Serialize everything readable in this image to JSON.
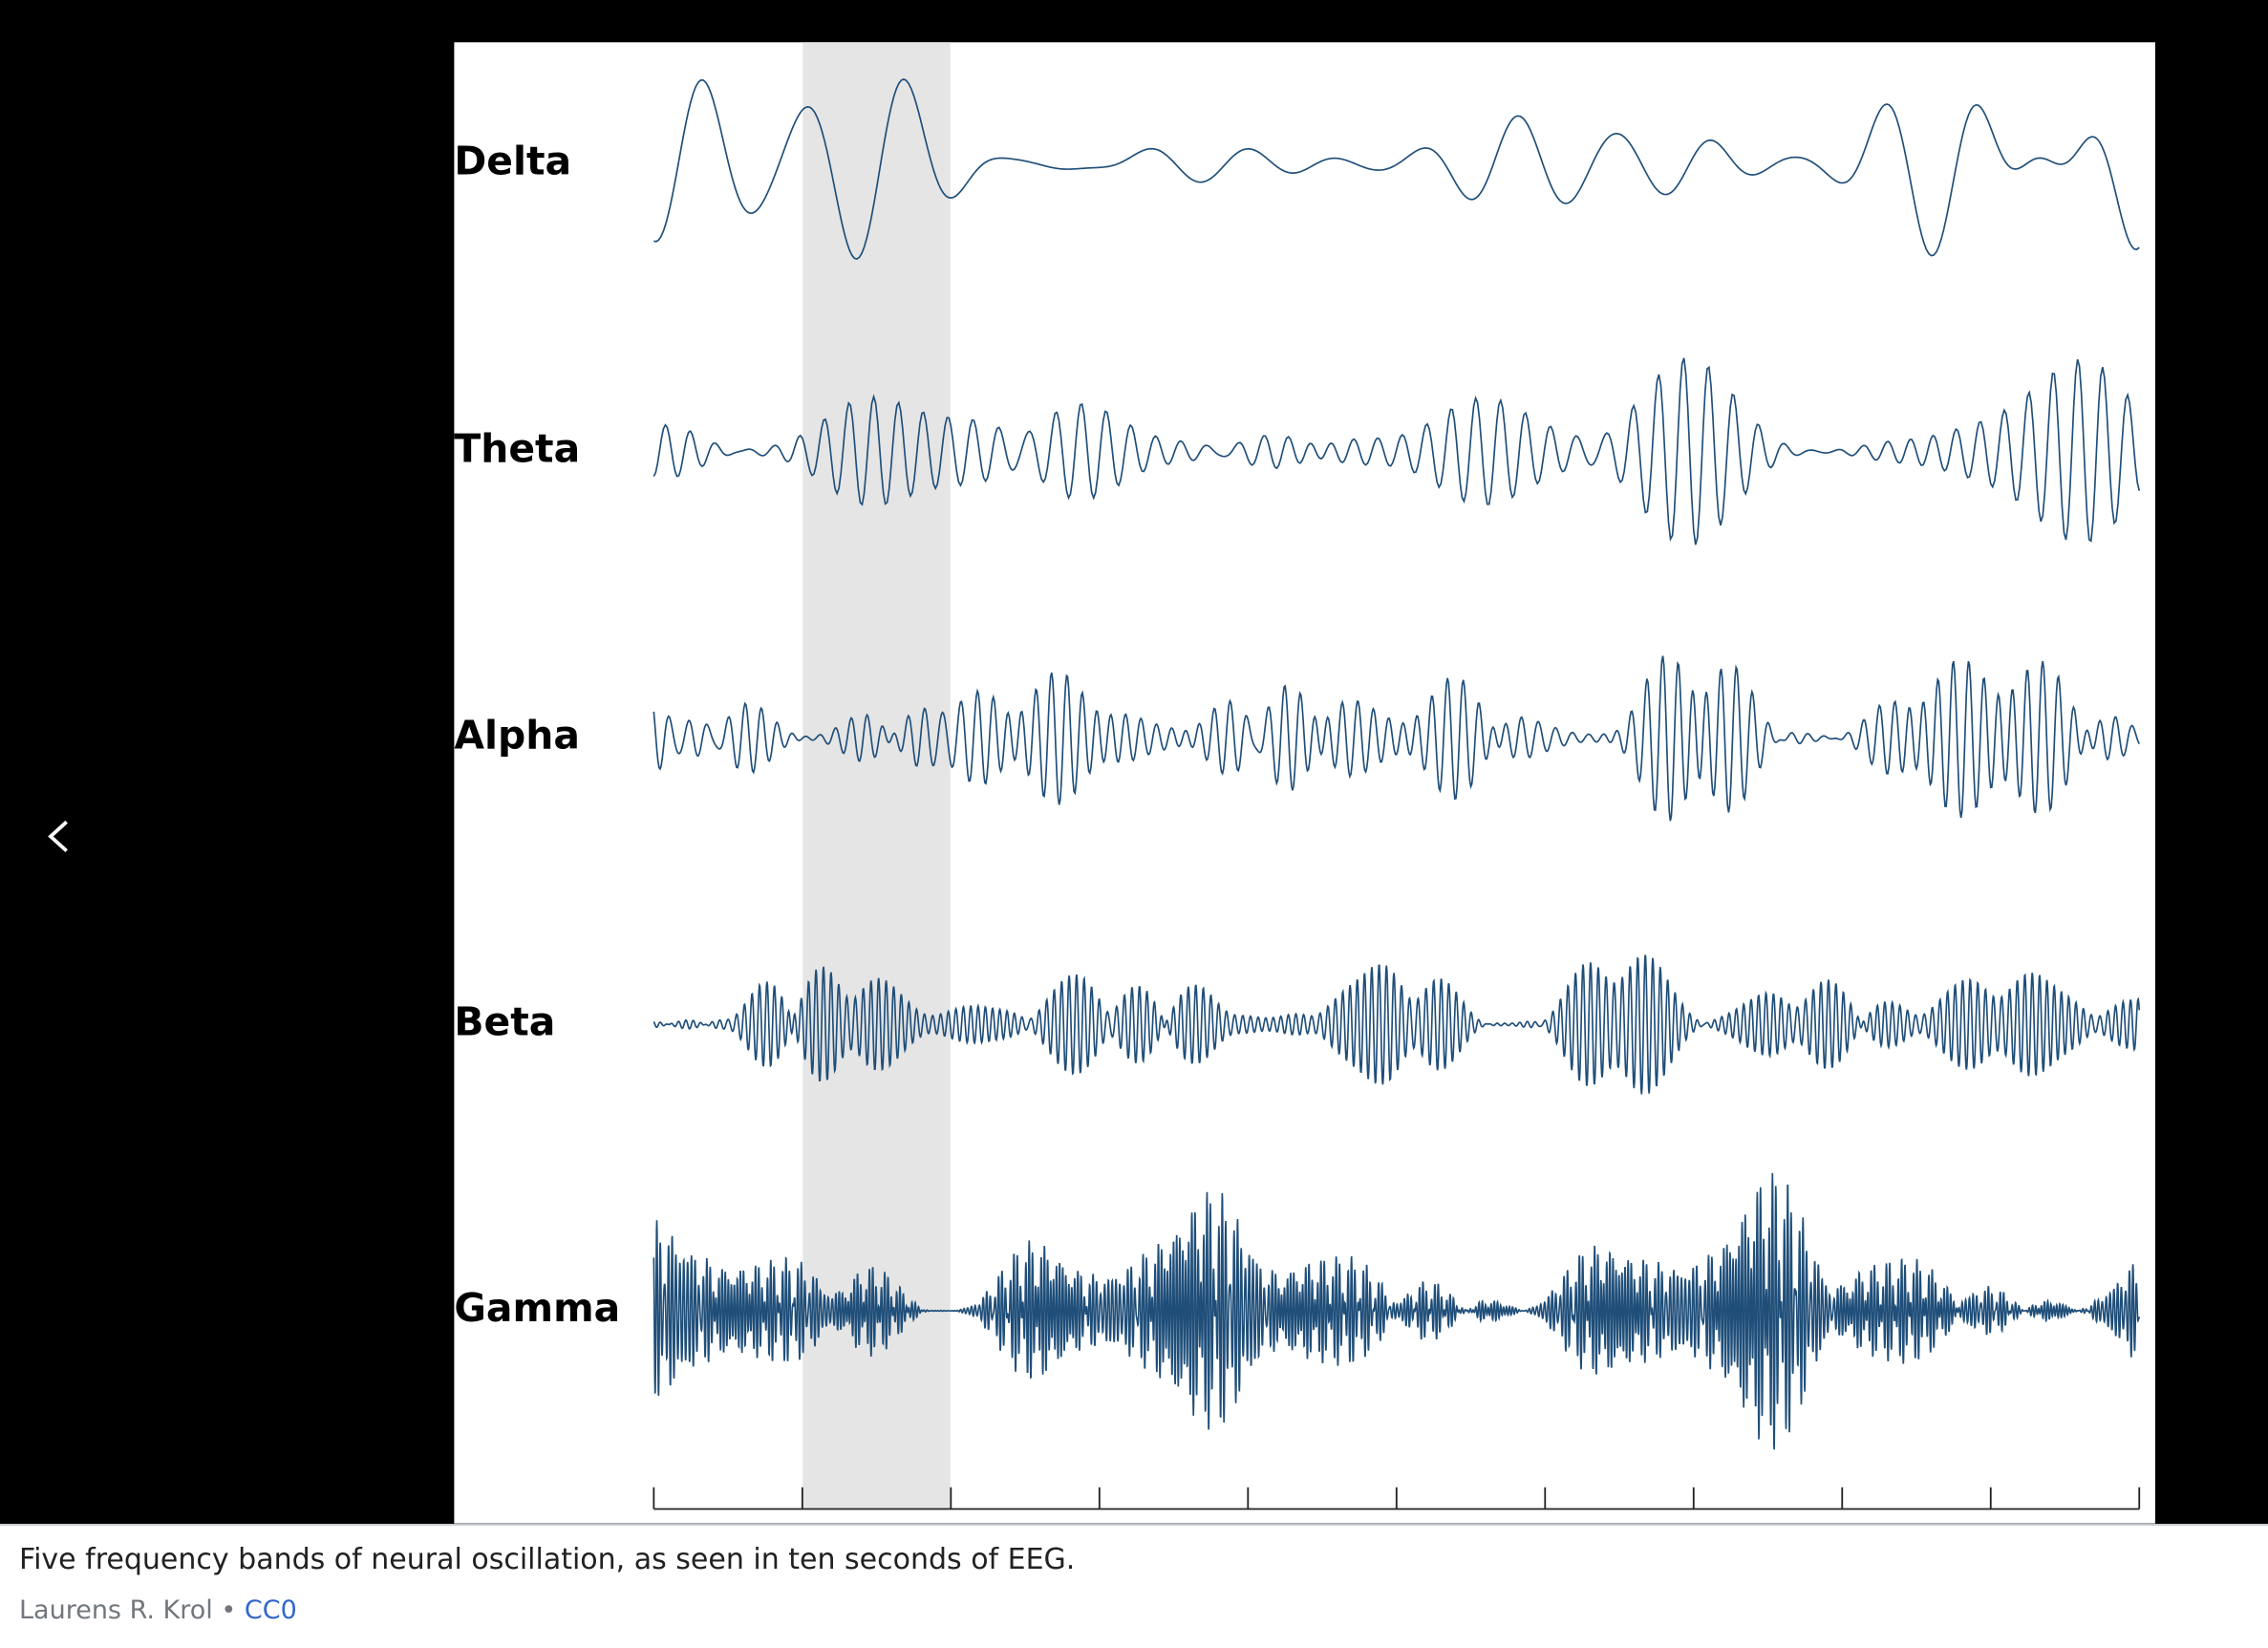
{
  "viewer": {
    "image": {
      "labels": [
        "Delta",
        "Theta",
        "Alpha",
        "Beta",
        "Gamma"
      ]
    },
    "caption": {
      "description": "Five frequency bands of neural oscillation, as seen in ten seconds of EEG.",
      "author": "Laurens R. Krol",
      "separator": "•",
      "license": "CC0"
    }
  }
}
